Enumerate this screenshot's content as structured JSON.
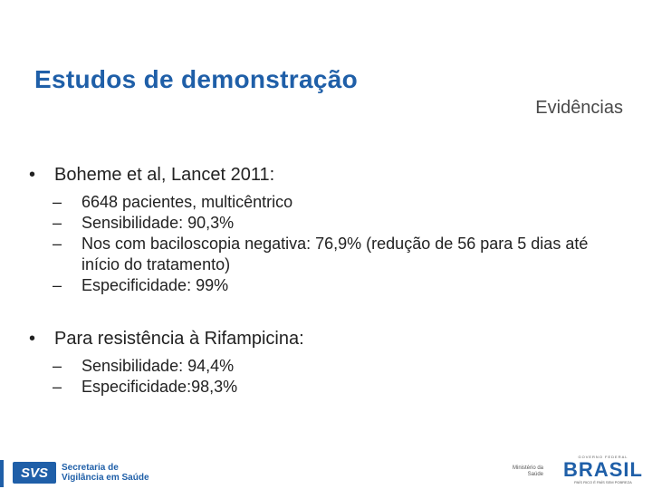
{
  "slide": {
    "title": "Estudos de demonstração",
    "subtitle": "Evidências"
  },
  "bullets": [
    {
      "text": "Boheme et al, Lancet 2011:",
      "items": [
        "6648 pacientes, multicêntrico",
        "Sensibilidade: 90,3%",
        "Nos com baciloscopia negativa: 76,9% (redução de 56 para 5 dias até início do tratamento)",
        "Especificidade: 99%"
      ]
    },
    {
      "text": "Para resistência à Rifampicina:",
      "items": [
        "Sensibilidade: 94,4%",
        "Especificidade:98,3%"
      ]
    }
  ],
  "footer": {
    "svs_logo_text": "SVS",
    "svs_line1": "Secretaria de",
    "svs_line2": "Vigilância em Saúde",
    "ministry_line1": "Ministério da",
    "ministry_line2": "Saúde",
    "brasil_top": "GOVERNO FEDERAL",
    "brasil_word": "BRASIL",
    "brasil_bottom": "PAÍS RICO É PAÍS SEM POBREZA"
  },
  "colors": {
    "brand": "#1f5fa8",
    "text": "#222222"
  }
}
